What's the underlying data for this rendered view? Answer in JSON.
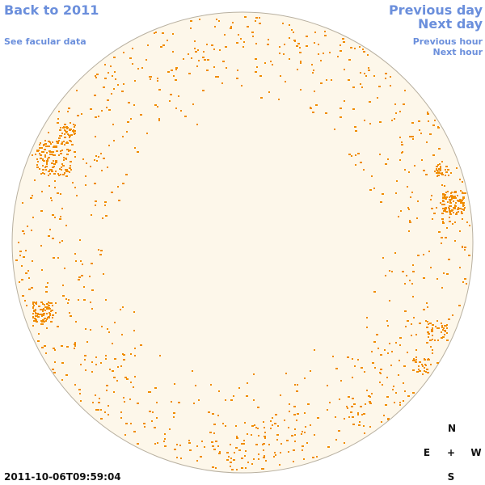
{
  "nav": {
    "back_label": "Back to 2011",
    "facular_label": "See facular data",
    "prev_day_label": "Previous day",
    "next_day_label": "Next day",
    "prev_hour_label": "Previous hour",
    "next_hour_label": "Next hour"
  },
  "compass": {
    "north": "N",
    "south": "S",
    "east": "E",
    "west": "W",
    "center": "+"
  },
  "timestamp": "2011-10-06T09:59:04",
  "colors": {
    "disk_fill": "#fdf7ea",
    "disk_stroke": "#b8b0a0",
    "facula": "#f08c00",
    "link": "#6b8fdc"
  }
}
